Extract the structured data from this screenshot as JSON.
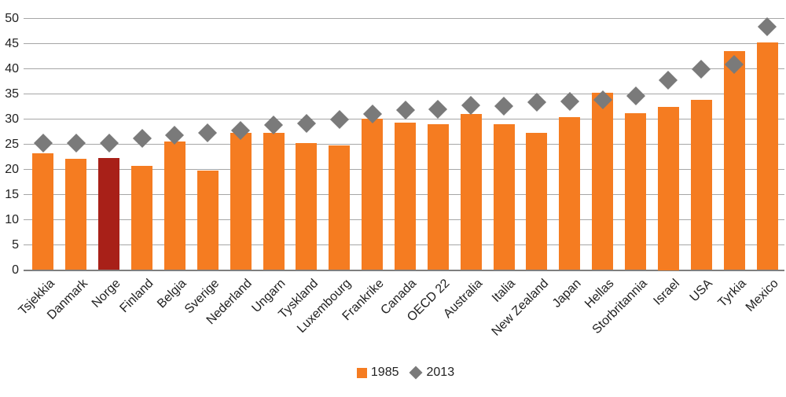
{
  "chart_data": {
    "type": "bar",
    "categories": [
      "Tsjekkia",
      "Danmark",
      "Norge",
      "Finland",
      "Belgia",
      "Sverige",
      "Nederland",
      "Ungarn",
      "Tyskland",
      "Luxembourg",
      "Frankrike",
      "Canada",
      "OECD 22",
      "Australia",
      "Italia",
      "New Zealand",
      "Japan",
      "Hellas",
      "Storbritannia",
      "Israel",
      "USA",
      "Tyrkia",
      "Mexico"
    ],
    "series": [
      {
        "name": "1985",
        "type": "bar",
        "values": [
          23.2,
          22.1,
          22.2,
          20.7,
          25.6,
          19.7,
          27.2,
          27.3,
          25.2,
          24.8,
          30.1,
          29.3,
          29.0,
          31.0,
          29.0,
          27.2,
          30.4,
          35.3,
          31.1,
          32.5,
          33.8,
          43.5,
          45.2
        ]
      },
      {
        "name": "2013",
        "type": "scatter-diamond",
        "values": [
          25.3,
          25.3,
          25.3,
          26.2,
          26.8,
          27.2,
          27.7,
          28.9,
          29.1,
          29.9,
          31.0,
          31.8,
          31.9,
          32.7,
          32.6,
          33.3,
          33.5,
          33.9,
          34.6,
          37.7,
          40.0,
          40.9,
          48.3
        ]
      }
    ],
    "title": "",
    "xlabel": "",
    "ylabel": "",
    "ylim": [
      0,
      50
    ],
    "yticks": [
      0,
      5,
      10,
      15,
      20,
      25,
      30,
      35,
      40,
      45,
      50
    ],
    "grid": true,
    "legend_position": "bottom",
    "highlight_category": "Norge",
    "colors": {
      "bar": "#F57C21",
      "highlight_bar": "#A82018",
      "marker": "#7A7A7A",
      "gridline": "#A6A6A6",
      "axis": "#7F7F7F",
      "text": "#212121"
    }
  },
  "legend": {
    "items": [
      {
        "label": "1985",
        "marker": "square",
        "color": "#F57C21"
      },
      {
        "label": "2013",
        "marker": "diamond",
        "color": "#7A7A7A"
      }
    ]
  }
}
